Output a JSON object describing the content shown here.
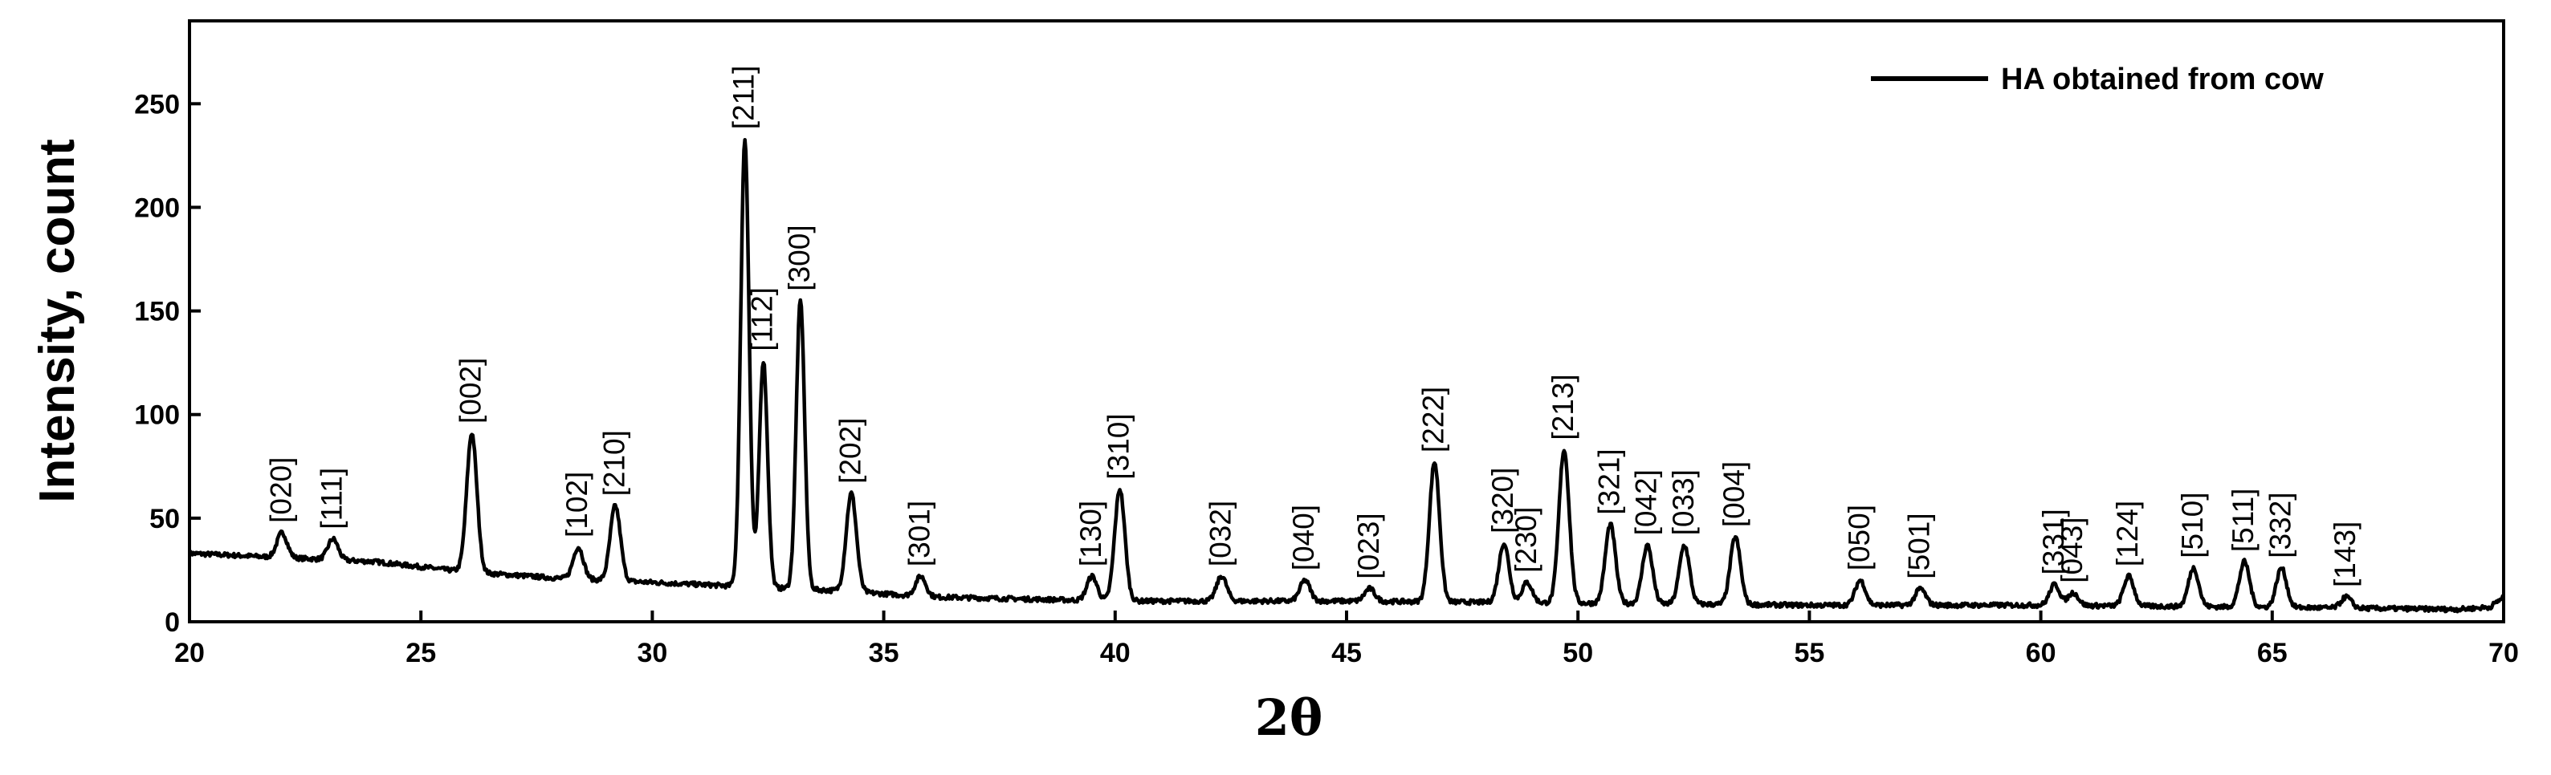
{
  "chart_data": {
    "type": "line",
    "title": "",
    "xlabel": "2θ",
    "ylabel": "Intensity, count",
    "xlim": [
      20,
      70
    ],
    "ylim": [
      0,
      290
    ],
    "xticks": [
      20,
      25,
      30,
      35,
      40,
      45,
      50,
      55,
      60,
      65,
      70
    ],
    "yticks": [
      0,
      50,
      100,
      150,
      200,
      250
    ],
    "grid": false,
    "legend": {
      "position": "top-right",
      "entries": [
        "HA obtained from cow"
      ]
    },
    "series": [
      {
        "name": "HA obtained from cow",
        "color": "#000000",
        "baseline": [
          [
            20,
            33
          ],
          [
            22,
            31
          ],
          [
            24,
            29
          ],
          [
            26,
            24
          ],
          [
            28,
            21
          ],
          [
            30,
            19
          ],
          [
            32,
            17
          ],
          [
            34,
            15
          ],
          [
            36,
            12
          ],
          [
            40,
            10
          ],
          [
            45,
            10
          ],
          [
            50,
            9
          ],
          [
            55,
            8
          ],
          [
            60,
            8
          ],
          [
            65,
            7
          ],
          [
            69,
            6
          ],
          [
            69.7,
            7
          ],
          [
            70,
            12
          ]
        ],
        "peaks": [
          {
            "label": "[020]",
            "x": 22.0,
            "y": 43
          },
          {
            "label": "[111]",
            "x": 23.1,
            "y": 40
          },
          {
            "label": "[002]",
            "x": 26.1,
            "y": 91
          },
          {
            "label": "[102]",
            "x": 28.4,
            "y": 36
          },
          {
            "label": "[210]",
            "x": 29.2,
            "y": 56
          },
          {
            "label": "[211]",
            "x": 32.0,
            "y": 233
          },
          {
            "label": "[112]",
            "x": 32.4,
            "y": 126
          },
          {
            "label": "[300]",
            "x": 33.2,
            "y": 155
          },
          {
            "label": "[202]",
            "x": 34.3,
            "y": 62
          },
          {
            "label": "[301]",
            "x": 35.8,
            "y": 22
          },
          {
            "label": "[130]",
            "x": 39.5,
            "y": 22
          },
          {
            "label": "[310]",
            "x": 40.1,
            "y": 64
          },
          {
            "label": "[032]",
            "x": 42.3,
            "y": 22
          },
          {
            "label": "[040]",
            "x": 44.1,
            "y": 20
          },
          {
            "label": "[023]",
            "x": 45.5,
            "y": 16
          },
          {
            "label": "[222]",
            "x": 46.9,
            "y": 77
          },
          {
            "label": "[320]",
            "x": 48.4,
            "y": 38
          },
          {
            "label": "[230]",
            "x": 48.9,
            "y": 19
          },
          {
            "label": "[213]",
            "x": 49.7,
            "y": 83
          },
          {
            "label": "[321]",
            "x": 50.7,
            "y": 47
          },
          {
            "label": "[042]",
            "x": 51.5,
            "y": 37
          },
          {
            "label": "[033]",
            "x": 52.3,
            "y": 37
          },
          {
            "label": "[004]",
            "x": 53.4,
            "y": 41
          },
          {
            "label": "[050]",
            "x": 56.1,
            "y": 20
          },
          {
            "label": "[501]",
            "x": 57.4,
            "y": 16
          },
          {
            "label": "[331]",
            "x": 60.3,
            "y": 18
          },
          {
            "label": "[043]",
            "x": 60.7,
            "y": 14
          },
          {
            "label": "[124]",
            "x": 61.9,
            "y": 22
          },
          {
            "label": "[510]",
            "x": 63.3,
            "y": 26
          },
          {
            "label": "[511]",
            "x": 64.4,
            "y": 29
          },
          {
            "label": "[332]",
            "x": 65.2,
            "y": 26
          },
          {
            "label": "[143]",
            "x": 66.6,
            "y": 12
          }
        ]
      }
    ]
  }
}
